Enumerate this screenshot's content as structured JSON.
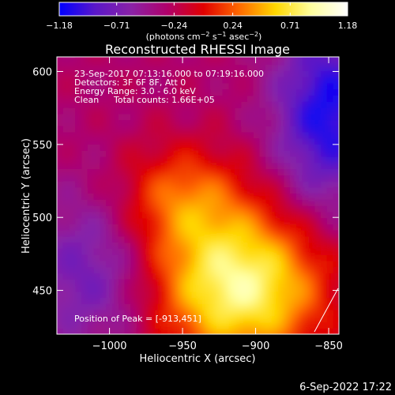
{
  "chart_data": {
    "type": "heatmap",
    "title": "Reconstructed RHESSI Image",
    "xlabel": "Heliocentric X (arcsec)",
    "ylabel": "Heliocentric Y (arcsec)",
    "xlim": [
      -1036,
      -843
    ],
    "ylim": [
      420,
      610
    ],
    "x_ticks": [
      -1000,
      -950,
      -900,
      -850
    ],
    "x_tick_labels": [
      "−1000",
      "−950",
      "−900",
      "−850"
    ],
    "y_ticks": [
      450,
      500,
      550,
      600
    ],
    "y_tick_labels": [
      "450",
      "500",
      "550",
      "600"
    ],
    "colorbar": {
      "min": -1.18,
      "max": 1.18,
      "ticks": [
        -1.18,
        -0.71,
        -0.24,
        0.24,
        0.71,
        1.18
      ],
      "tick_labels": [
        "−1.18",
        "−0.71",
        "−0.24",
        "0.24",
        "0.71",
        "1.18"
      ],
      "label_parts": [
        "(photons cm",
        "−2",
        " s",
        "−1",
        " asec",
        "−2",
        ")"
      ],
      "colors": [
        "#0000ff",
        "#5a17c8",
        "#8a22a6",
        "#b0006a",
        "#e00000",
        "#ff6a00",
        "#ffd700",
        "#ffffa0",
        "#ffffff"
      ]
    },
    "annotations": {
      "time_range": "23-Sep-2017 07:13:16.000 to 07:19:16.000",
      "detectors": "Detectors: 3F 6F 8F, Att 0",
      "energy_range": "Energy Range: 3.0 - 6.0 keV",
      "clean_label": "Clean",
      "total_counts": "Total counts: 1.66E+05",
      "peak_position": "Position of Peak = [-913,451]"
    },
    "peak": [
      -913,
      451
    ],
    "grid": false
  },
  "footer": {
    "timestamp": "6-Sep-2022 17:22"
  }
}
